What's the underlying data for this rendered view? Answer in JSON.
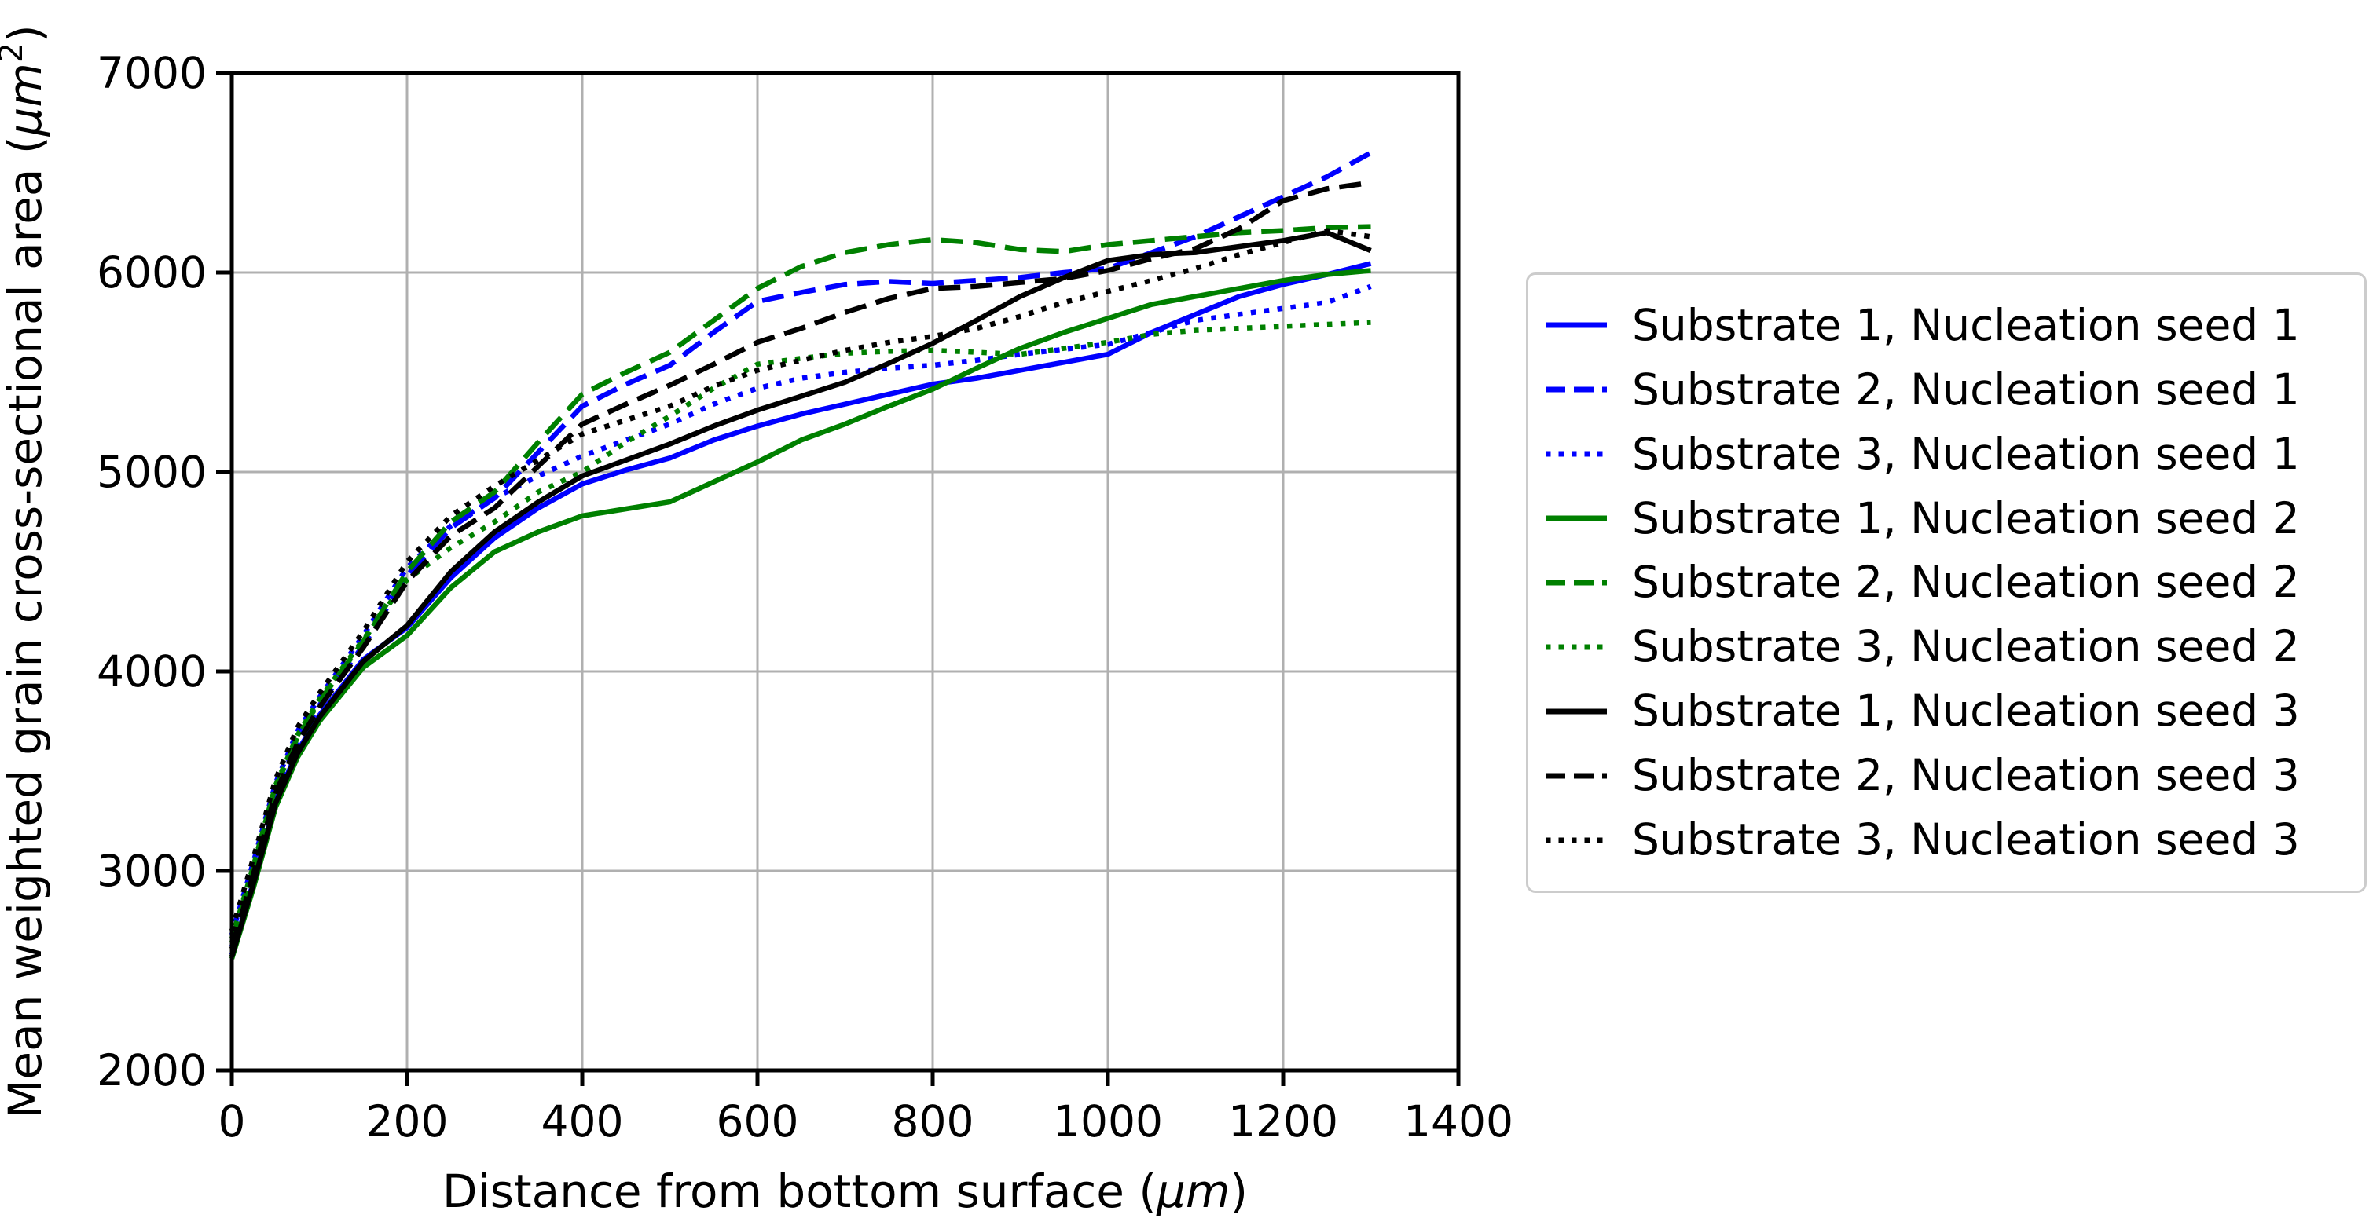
{
  "figure": {
    "background": "#ffffff",
    "accent_colors": {
      "blue": "#0000ff",
      "green": "#008000",
      "black": "#000000"
    }
  },
  "chart_data": {
    "type": "line",
    "title": "",
    "xlabel": "Distance from bottom surface (μm)",
    "xlabel_parts": {
      "prefix": "Distance from bottom surface (",
      "unit": "μm",
      "suffix": ")"
    },
    "ylabel": "Mean weighted grain cross-sectional area (μm²)",
    "ylabel_parts": {
      "prefix": "Mean weighted grain cross-sectional area (",
      "unit": "μm",
      "sup": "2",
      "suffix": ")"
    },
    "xlim": [
      0,
      1400
    ],
    "ylim": [
      2000,
      7000
    ],
    "xticks": [
      0,
      200,
      400,
      600,
      800,
      1000,
      1200,
      1400
    ],
    "yticks": [
      2000,
      3000,
      4000,
      5000,
      6000,
      7000
    ],
    "grid": true,
    "grid_color": "#b0b0b0",
    "legend_position": "outside-right",
    "x": [
      0,
      25,
      50,
      75,
      100,
      150,
      200,
      250,
      300,
      350,
      400,
      450,
      500,
      550,
      600,
      650,
      700,
      750,
      800,
      850,
      900,
      950,
      1000,
      1050,
      1100,
      1150,
      1200,
      1250,
      1300
    ],
    "series": [
      {
        "name": "Substrate 1, Nucleation seed 1",
        "color": "#0000ff",
        "style": "solid",
        "values": [
          2580,
          2950,
          3350,
          3600,
          3780,
          4060,
          4220,
          4470,
          4670,
          4820,
          4940,
          5010,
          5070,
          5160,
          5230,
          5290,
          5340,
          5390,
          5440,
          5470,
          5510,
          5550,
          5590,
          5700,
          5790,
          5880,
          5940,
          5990,
          6045
        ]
      },
      {
        "name": "Substrate 2, Nucleation seed 1",
        "color": "#0000ff",
        "style": "dashed",
        "values": [
          2620,
          3000,
          3400,
          3650,
          3830,
          4130,
          4480,
          4720,
          4870,
          5100,
          5330,
          5440,
          5535,
          5700,
          5855,
          5900,
          5940,
          5955,
          5945,
          5960,
          5975,
          6000,
          6020,
          6100,
          6180,
          6280,
          6380,
          6480,
          6600
        ]
      },
      {
        "name": "Substrate 3, Nucleation seed 1",
        "color": "#0000ff",
        "style": "dotted",
        "values": [
          2680,
          3050,
          3440,
          3700,
          3870,
          4180,
          4520,
          4730,
          4870,
          4980,
          5080,
          5160,
          5240,
          5340,
          5420,
          5470,
          5500,
          5520,
          5535,
          5560,
          5590,
          5615,
          5640,
          5700,
          5760,
          5790,
          5820,
          5850,
          5930
        ]
      },
      {
        "name": "Substrate 1, Nucleation seed 2",
        "color": "#008000",
        "style": "solid",
        "values": [
          2560,
          2920,
          3320,
          3570,
          3750,
          4020,
          4180,
          4420,
          4600,
          4700,
          4780,
          4815,
          4850,
          4950,
          5050,
          5160,
          5240,
          5330,
          5415,
          5520,
          5620,
          5700,
          5770,
          5840,
          5880,
          5920,
          5960,
          5990,
          6010
        ]
      },
      {
        "name": "Substrate 2, Nucleation seed 2",
        "color": "#008000",
        "style": "dashed",
        "values": [
          2640,
          3020,
          3420,
          3670,
          3850,
          4150,
          4500,
          4750,
          4900,
          5150,
          5390,
          5500,
          5600,
          5760,
          5920,
          6030,
          6100,
          6140,
          6165,
          6150,
          6115,
          6105,
          6140,
          6160,
          6180,
          6200,
          6210,
          6225,
          6230
        ]
      },
      {
        "name": "Substrate 3, Nucleation seed 2",
        "color": "#008000",
        "style": "dotted",
        "values": [
          2660,
          3030,
          3430,
          3680,
          3860,
          4160,
          4460,
          4620,
          4750,
          4900,
          5000,
          5150,
          5280,
          5420,
          5540,
          5570,
          5595,
          5605,
          5610,
          5600,
          5590,
          5620,
          5650,
          5690,
          5710,
          5720,
          5730,
          5740,
          5750
        ]
      },
      {
        "name": "Substrate 1, Nucleation seed 3",
        "color": "#000000",
        "style": "solid",
        "values": [
          2570,
          2940,
          3340,
          3590,
          3770,
          4050,
          4230,
          4500,
          4700,
          4850,
          4980,
          5060,
          5140,
          5230,
          5310,
          5380,
          5450,
          5545,
          5645,
          5760,
          5880,
          5975,
          6060,
          6090,
          6100,
          6130,
          6160,
          6200,
          6110
        ]
      },
      {
        "name": "Substrate 2, Nucleation seed 3",
        "color": "#000000",
        "style": "dashed",
        "values": [
          2610,
          2990,
          3390,
          3640,
          3820,
          4120,
          4450,
          4680,
          4820,
          5030,
          5240,
          5340,
          5435,
          5540,
          5650,
          5720,
          5800,
          5870,
          5920,
          5930,
          5950,
          5970,
          6010,
          6070,
          6120,
          6220,
          6360,
          6420,
          6450
        ]
      },
      {
        "name": "Substrate 3, Nucleation seed 3",
        "color": "#000000",
        "style": "dotted",
        "values": [
          2700,
          3070,
          3460,
          3720,
          3890,
          4200,
          4550,
          4780,
          4930,
          5060,
          5190,
          5260,
          5330,
          5430,
          5510,
          5560,
          5610,
          5650,
          5680,
          5720,
          5780,
          5850,
          5905,
          5960,
          6020,
          6090,
          6150,
          6210,
          6180
        ]
      }
    ]
  }
}
